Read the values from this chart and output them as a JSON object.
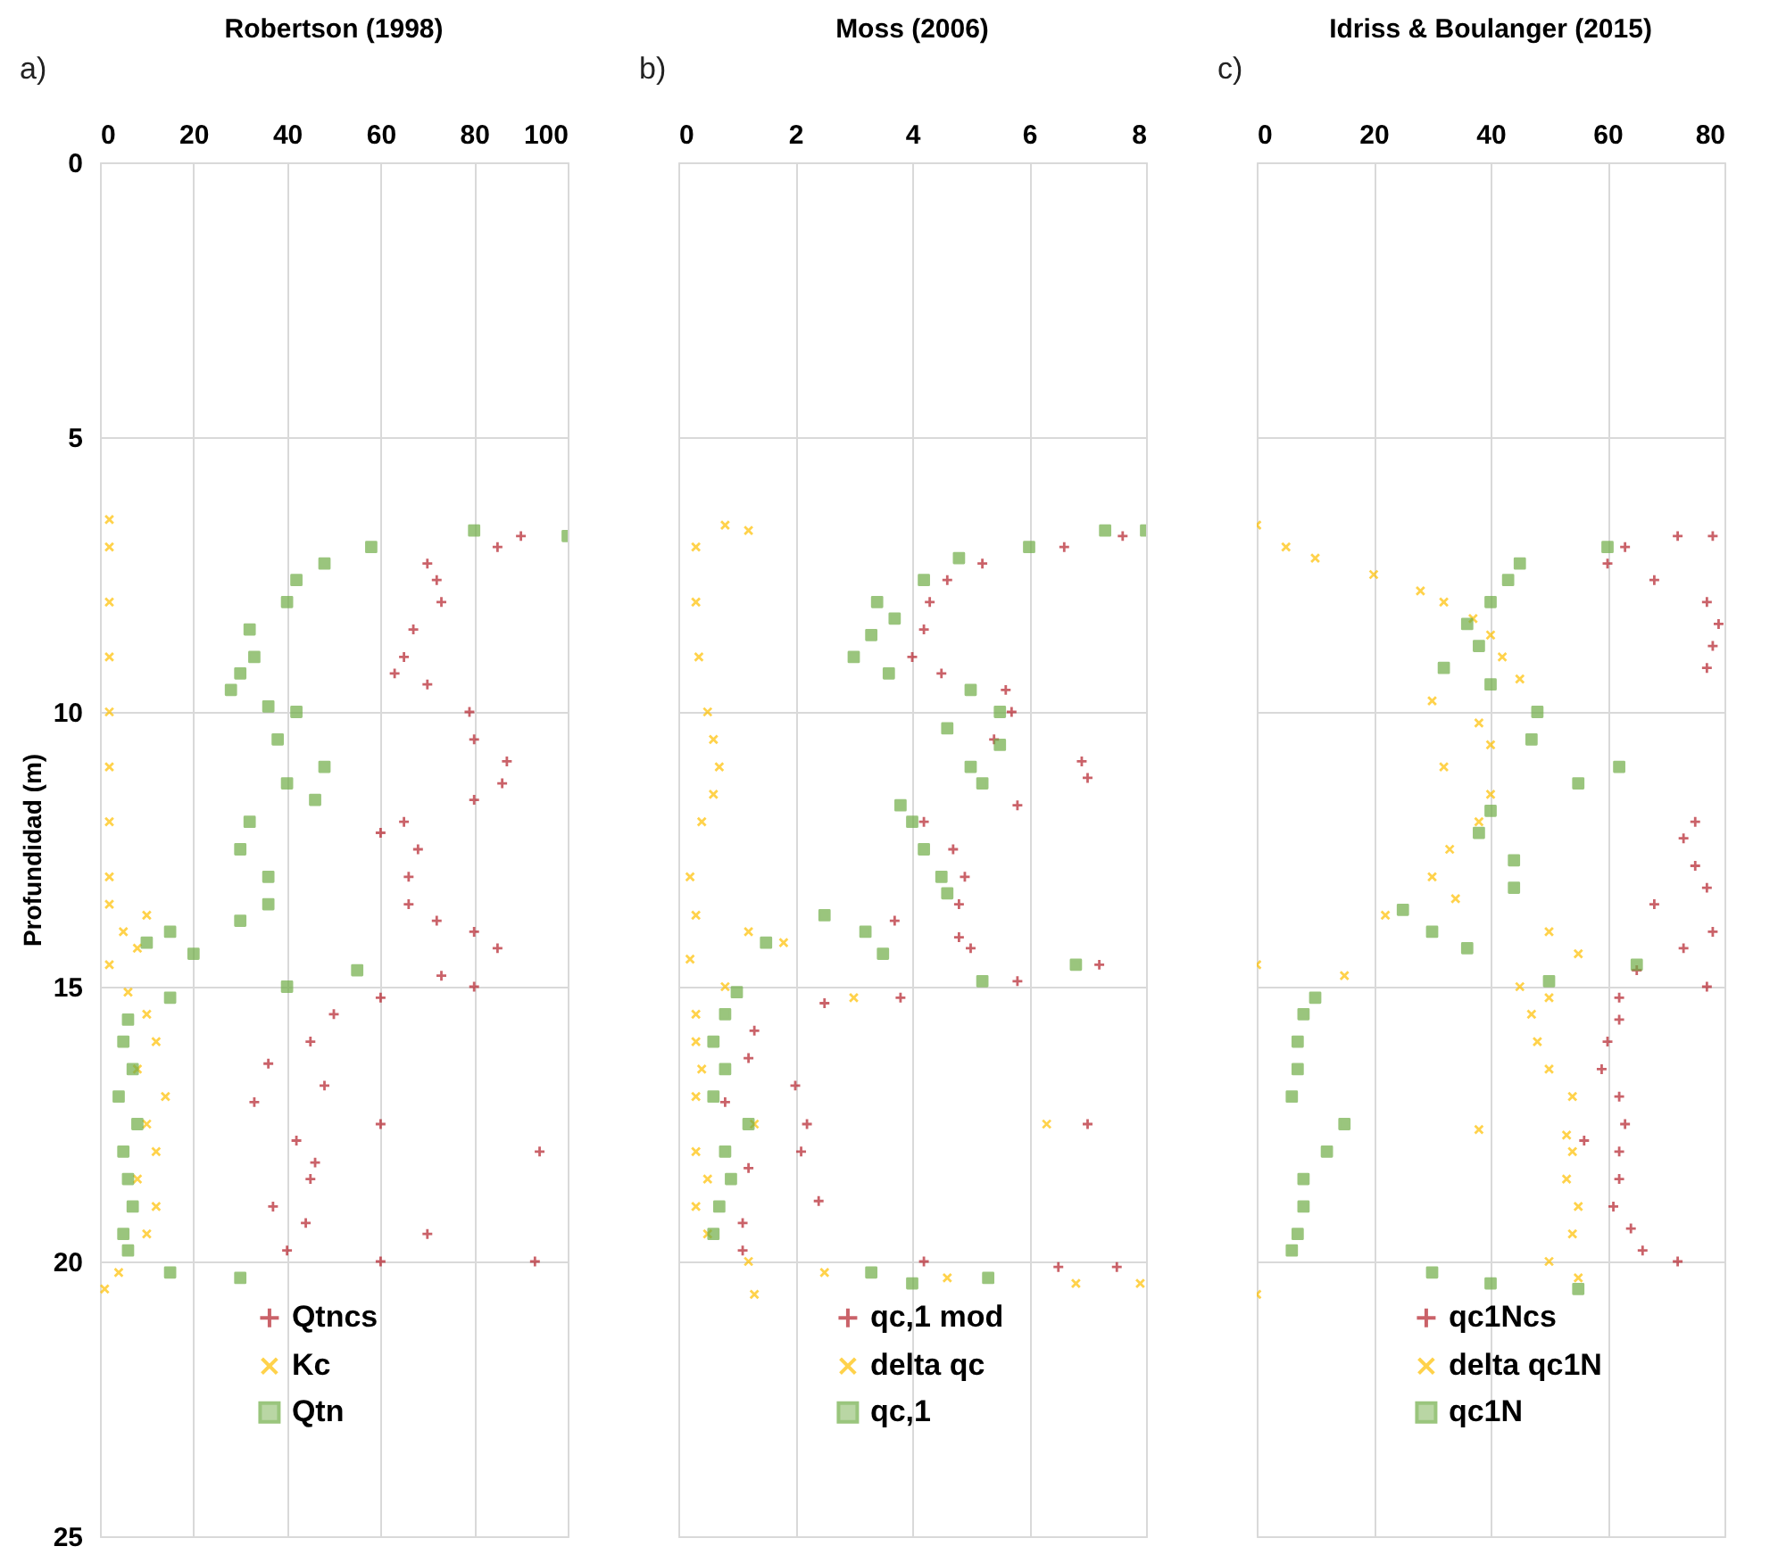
{
  "chart_data": [
    {
      "type": "scatter",
      "title": "Robertson (1998)",
      "annotations": [
        "a)"
      ],
      "ylabel": "Profundidad (m)",
      "xlim": [
        0,
        100
      ],
      "xticks": [
        0,
        20,
        40,
        60,
        80,
        100
      ],
      "ylim": [
        25,
        0
      ],
      "yticks": [
        0,
        5,
        10,
        15,
        20,
        25
      ],
      "grid": true,
      "legend": "bottom",
      "series": [
        {
          "name": "Qtncs",
          "color": "#b5202a",
          "marker": "cross",
          "x": [
            90,
            85,
            70,
            72,
            73,
            67,
            65,
            63,
            70,
            79,
            80,
            87,
            86,
            80,
            65,
            60,
            68,
            66,
            66,
            72,
            80,
            85,
            73,
            80,
            60,
            50,
            45,
            36,
            48,
            33,
            60,
            42,
            94,
            46,
            45,
            37,
            44,
            70,
            40,
            93,
            60
          ],
          "values": [
            6.8,
            7.0,
            7.3,
            7.6,
            8.0,
            8.5,
            9.0,
            9.3,
            9.5,
            10.0,
            10.5,
            10.9,
            11.3,
            11.6,
            12.0,
            12.2,
            12.5,
            13.0,
            13.5,
            13.8,
            14.0,
            14.3,
            14.8,
            15.0,
            15.2,
            15.5,
            16.0,
            16.4,
            16.8,
            17.1,
            17.5,
            17.8,
            18.0,
            18.2,
            18.5,
            19.0,
            19.3,
            19.5,
            19.8,
            20.0,
            20.0
          ]
        },
        {
          "name": "Kc",
          "color": "#ffc000",
          "marker": "x",
          "x": [
            2,
            2,
            2,
            2,
            2,
            2,
            2,
            2,
            2,
            10,
            5,
            8,
            2,
            6,
            10,
            12,
            8,
            14,
            10,
            12,
            8,
            12,
            10,
            4,
            1
          ],
          "values": [
            6.5,
            7.0,
            8.0,
            9.0,
            10.0,
            11.0,
            12.0,
            13.0,
            13.5,
            13.7,
            14.0,
            14.3,
            14.6,
            15.1,
            15.5,
            16.0,
            16.5,
            17.0,
            17.5,
            18.0,
            18.5,
            19.0,
            19.5,
            20.2,
            20.5
          ]
        },
        {
          "name": "Qtn",
          "color": "#70ad47",
          "marker": "square",
          "x": [
            80,
            100,
            58,
            48,
            42,
            40,
            32,
            33,
            30,
            28,
            36,
            42,
            38,
            48,
            40,
            46,
            32,
            30,
            36,
            36,
            30,
            15,
            10,
            20,
            55,
            40,
            15,
            6,
            5,
            7,
            4,
            8,
            5,
            6,
            7,
            5,
            6,
            15,
            30
          ],
          "values": [
            6.7,
            6.8,
            7.0,
            7.3,
            7.6,
            8.0,
            8.5,
            9.0,
            9.3,
            9.6,
            9.9,
            10.0,
            10.5,
            11.0,
            11.3,
            11.6,
            12.0,
            12.5,
            13.0,
            13.5,
            13.8,
            14.0,
            14.2,
            14.4,
            14.7,
            15.0,
            15.2,
            15.6,
            16.0,
            16.5,
            17.0,
            17.5,
            18.0,
            18.5,
            19.0,
            19.5,
            19.8,
            20.2,
            20.3
          ]
        }
      ]
    },
    {
      "type": "scatter",
      "title": "Moss (2006)",
      "annotations": [
        "b)"
      ],
      "xlim": [
        0,
        8
      ],
      "xticks": [
        0,
        2,
        4,
        6,
        8
      ],
      "ylim": [
        25,
        0
      ],
      "yticks": [
        0,
        5,
        10,
        15,
        20,
        25
      ],
      "grid": true,
      "legend": "bottom",
      "tick_labels": "x",
      "series": [
        {
          "name": "qc,1 mod",
          "color": "#b5202a",
          "marker": "cross",
          "x": [
            7.6,
            6.6,
            5.2,
            4.6,
            4.3,
            4.2,
            4.0,
            4.5,
            5.6,
            5.7,
            5.4,
            6.9,
            7.0,
            5.8,
            4.2,
            4.7,
            4.9,
            4.8,
            3.7,
            4.8,
            5.0,
            7.2,
            5.8,
            3.8,
            2.5,
            1.3,
            1.2,
            2.0,
            0.8,
            2.2,
            7.0,
            2.1,
            1.2,
            2.4,
            1.1,
            1.1,
            4.2,
            6.5,
            7.5
          ],
          "values": [
            6.8,
            7.0,
            7.3,
            7.6,
            8.0,
            8.5,
            9.0,
            9.3,
            9.6,
            10.0,
            10.5,
            10.9,
            11.2,
            11.7,
            12.0,
            12.5,
            13.0,
            13.5,
            13.8,
            14.1,
            14.3,
            14.6,
            14.9,
            15.2,
            15.3,
            15.8,
            16.3,
            16.8,
            17.1,
            17.5,
            17.5,
            18.0,
            18.3,
            18.9,
            19.3,
            19.8,
            20.0,
            20.1,
            20.1
          ]
        },
        {
          "name": "delta qc",
          "color": "#ffc000",
          "marker": "x",
          "x": [
            0.8,
            1.2,
            0.3,
            0.3,
            0.35,
            0.5,
            0.6,
            0.7,
            0.6,
            0.4,
            0.2,
            0.3,
            1.2,
            1.8,
            0.2,
            0.8,
            3.0,
            0.3,
            0.3,
            0.4,
            0.3,
            1.3,
            6.3,
            0.3,
            0.5,
            0.3,
            0.5,
            1.2,
            2.5,
            4.6,
            6.8,
            7.9,
            1.3
          ],
          "values": [
            6.6,
            6.7,
            7.0,
            8.0,
            9.0,
            10.0,
            10.5,
            11.0,
            11.5,
            12.0,
            13.0,
            13.7,
            14.0,
            14.2,
            14.5,
            15.0,
            15.2,
            15.5,
            16.0,
            16.5,
            17.0,
            17.5,
            17.5,
            18.0,
            18.5,
            19.0,
            19.5,
            20.0,
            20.2,
            20.3,
            20.4,
            20.4,
            20.6
          ]
        },
        {
          "name": "qc,1",
          "color": "#70ad47",
          "marker": "square",
          "x": [
            7.3,
            8.0,
            6.0,
            4.8,
            4.2,
            3.4,
            3.7,
            3.3,
            3.0,
            3.6,
            5.0,
            5.5,
            4.6,
            5.5,
            5.0,
            5.2,
            3.8,
            4.0,
            4.2,
            4.5,
            4.6,
            2.5,
            3.2,
            1.5,
            3.5,
            6.8,
            5.2,
            1.0,
            0.8,
            0.6,
            0.8,
            0.6,
            1.2,
            0.8,
            0.9,
            0.7,
            0.6,
            3.3,
            4.0,
            5.3
          ],
          "values": [
            6.7,
            6.7,
            7.0,
            7.2,
            7.6,
            8.0,
            8.3,
            8.6,
            9.0,
            9.3,
            9.6,
            10.0,
            10.3,
            10.6,
            11.0,
            11.3,
            11.7,
            12.0,
            12.5,
            13.0,
            13.3,
            13.7,
            14.0,
            14.2,
            14.4,
            14.6,
            14.9,
            15.1,
            15.5,
            16.0,
            16.5,
            17.0,
            17.5,
            18.0,
            18.5,
            19.0,
            19.5,
            20.2,
            20.4,
            20.3
          ]
        }
      ]
    },
    {
      "type": "scatter",
      "title": "Idriss & Boulanger (2015)",
      "annotations": [
        "c)"
      ],
      "xlim": [
        0,
        80
      ],
      "xticks": [
        0,
        20,
        40,
        60,
        80
      ],
      "ylim": [
        25,
        0
      ],
      "yticks": [
        0,
        5,
        10,
        15,
        20,
        25
      ],
      "grid": true,
      "legend": "bottom",
      "tick_labels": "x",
      "series": [
        {
          "name": "qc1Ncs",
          "color": "#b5202a",
          "marker": "cross",
          "x": [
            72,
            78,
            63,
            60,
            68,
            77,
            79,
            78,
            77,
            75,
            73,
            75,
            77,
            68,
            78,
            73,
            65,
            77,
            62,
            62,
            60,
            59,
            62,
            63,
            56,
            62,
            62,
            61,
            64,
            66,
            72
          ],
          "values": [
            6.8,
            6.8,
            7.0,
            7.3,
            7.6,
            8.0,
            8.4,
            8.8,
            9.2,
            12.0,
            12.3,
            12.8,
            13.2,
            13.5,
            14.0,
            14.3,
            14.7,
            15.0,
            15.2,
            15.6,
            16.0,
            16.5,
            17.0,
            17.5,
            17.8,
            18.0,
            18.5,
            19.0,
            19.4,
            19.8,
            20.0
          ]
        },
        {
          "name": "delta qc1N",
          "color": "#ffc000",
          "marker": "x",
          "x": [
            0,
            5,
            10,
            20,
            28,
            32,
            37,
            40,
            42,
            45,
            30,
            38,
            40,
            32,
            40,
            38,
            33,
            30,
            34,
            22,
            50,
            55,
            0,
            15,
            45,
            50,
            47,
            48,
            50,
            54,
            38,
            53,
            54,
            53,
            55,
            54,
            50,
            55,
            0
          ],
          "values": [
            6.6,
            7.0,
            7.2,
            7.5,
            7.8,
            8.0,
            8.3,
            8.6,
            9.0,
            9.4,
            9.8,
            10.2,
            10.6,
            11.0,
            11.5,
            12.0,
            12.5,
            13.0,
            13.4,
            13.7,
            14.0,
            14.4,
            14.6,
            14.8,
            15.0,
            15.2,
            15.5,
            16.0,
            16.5,
            17.0,
            17.6,
            17.7,
            18.0,
            18.5,
            19.0,
            19.5,
            20.0,
            20.3,
            20.6
          ]
        },
        {
          "name": "qc1N",
          "color": "#70ad47",
          "marker": "square",
          "x": [
            60,
            45,
            43,
            40,
            36,
            38,
            32,
            40,
            48,
            47,
            62,
            55,
            40,
            38,
            44,
            44,
            25,
            30,
            36,
            65,
            50,
            10,
            8,
            7,
            7,
            6,
            15,
            12,
            8,
            8,
            7,
            6,
            30,
            40,
            55
          ],
          "values": [
            7.0,
            7.3,
            7.6,
            8.0,
            8.4,
            8.8,
            9.2,
            9.5,
            10.0,
            10.5,
            11.0,
            11.3,
            11.8,
            12.2,
            12.7,
            13.2,
            13.6,
            14.0,
            14.3,
            14.6,
            14.9,
            15.2,
            15.5,
            16.0,
            16.5,
            17.0,
            17.5,
            18.0,
            18.5,
            19.0,
            19.5,
            19.8,
            20.2,
            20.4,
            20.5
          ]
        }
      ]
    }
  ]
}
